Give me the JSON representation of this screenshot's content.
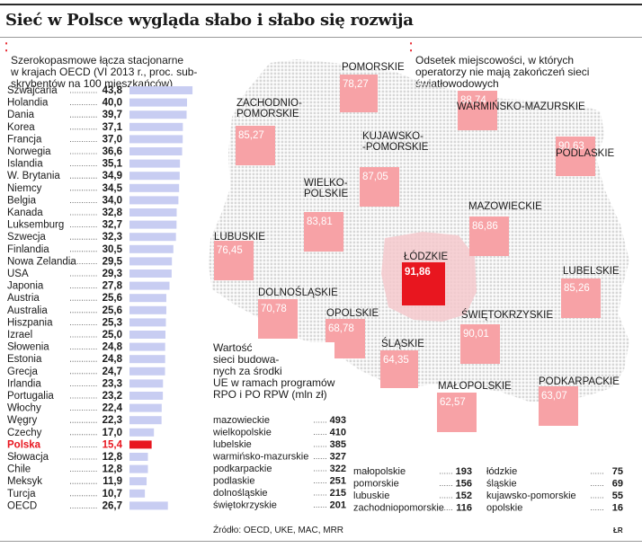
{
  "title": "Sieć w Polsce wygląda słabo i słabo się rozwija",
  "source": "Źródło: OECD, UKE, MAC, MRR",
  "author": "ŁR",
  "colors": {
    "bar": "#c8cdf2",
    "bar_highlight": "#e8161f",
    "highlight_text": "#e8161f",
    "region_box": "#f7a2a6",
    "region_box_max": "#e8161f",
    "map_dots": "#d7d7d7",
    "map_pink": "#f5c9cc"
  },
  "chart_data": [
    {
      "type": "bar",
      "title": "Szerokopasmowe łącza stacjonarne\nw krajach OECD (VI 2013 r., proc. sub-\nskrybentów na 100 mieszkańców)",
      "categories": [
        "Szwajcaria",
        "Holandia",
        "Dania",
        "Korea",
        "Francja",
        "Norwegia",
        "Islandia",
        "W. Brytania",
        "Niemcy",
        "Belgia",
        "Kanada",
        "Luksemburg",
        "Szwecja",
        "Finlandia",
        "Nowa Zelandia",
        "USA",
        "Japonia",
        "Austria",
        "Australia",
        "Hiszpania",
        "Izrael",
        "Słowenia",
        "Estonia",
        "Grecja",
        "Irlandia",
        "Portugalia",
        "Włochy",
        "Węgry",
        "Czechy",
        "Polska",
        "Słowacja",
        "Chile",
        "Meksyk",
        "Turcja",
        "OECD"
      ],
      "values": [
        43.8,
        40.0,
        39.7,
        37.1,
        37.0,
        36.6,
        35.1,
        34.9,
        34.5,
        34.0,
        32.8,
        32.7,
        32.3,
        30.5,
        29.5,
        29.3,
        27.8,
        25.6,
        25.6,
        25.3,
        25.0,
        24.8,
        24.8,
        24.7,
        23.3,
        23.2,
        22.4,
        22.3,
        17.0,
        15.4,
        12.8,
        12.8,
        11.9,
        10.7,
        26.7
      ],
      "value_labels": [
        "43,8",
        "40,0",
        "39,7",
        "37,1",
        "37,0",
        "36,6",
        "35,1",
        "34,9",
        "34,5",
        "34,0",
        "32,8",
        "32,7",
        "32,3",
        "30,5",
        "29,5",
        "29,3",
        "27,8",
        "25,6",
        "25,6",
        "25,3",
        "25,0",
        "24,8",
        "24,8",
        "24,7",
        "23,3",
        "23,2",
        "22,4",
        "22,3",
        "17,0",
        "15,4",
        "12,8",
        "12,8",
        "11,9",
        "10,7",
        "26,7"
      ],
      "highlight": "Polska",
      "xlim": [
        0,
        45
      ]
    },
    {
      "type": "map",
      "title": "Odsetek miejscowości, w których\noperatorzy nie mają zakończeń sieci\nświatłowodowych",
      "regions": [
        {
          "name": "POMORSKIE",
          "value": 78.27,
          "label": "78,27"
        },
        {
          "name": "ZACHODNIO-\nPOMORSKIE",
          "value": 85.27,
          "label": "85,27"
        },
        {
          "name": "WARMIŃSKO-MAZURSKIE",
          "value": 88.74,
          "label": "88,74"
        },
        {
          "name": "KUJAWSKO-\n-POMORSKIE",
          "value": 87.05,
          "label": "87,05"
        },
        {
          "name": "PODLASKIE",
          "value": 90.63,
          "label": "90,63"
        },
        {
          "name": "WIELKO-\nPOLSKIE",
          "value": 83.81,
          "label": "83,81"
        },
        {
          "name": "MAZOWIECKIE",
          "value": 86.86,
          "label": "86,86"
        },
        {
          "name": "LUBUSKIE",
          "value": 76.45,
          "label": "76,45"
        },
        {
          "name": "ŁÓDZKIE",
          "value": 91.86,
          "label": "91,86"
        },
        {
          "name": "LUBELSKIE",
          "value": 85.26,
          "label": "85,26"
        },
        {
          "name": "DOLNOŚLĄSKIE",
          "value": 70.78,
          "label": "70,78"
        },
        {
          "name": "OPOLSKIE",
          "value": 68.78,
          "label": "68,78"
        },
        {
          "name": "ŚWIĘTOKRZYSKIE",
          "value": 90.01,
          "label": "90,01"
        },
        {
          "name": "ŚLĄSKIE",
          "value": 64.35,
          "label": "64,35"
        },
        {
          "name": "MAŁOPOLSKIE",
          "value": 62.57,
          "label": "62,57"
        },
        {
          "name": "PODKARPACKIE",
          "value": 63.07,
          "label": "63,07"
        }
      ]
    },
    {
      "type": "table",
      "title": "Wartość\nsieci budowa-\nnych za środki\nUE w ramach programów\nRPO i PO RPW (mln zł)",
      "columns": [
        [
          {
            "name": "mazowieckie",
            "value": 493
          },
          {
            "name": "wielkopolskie",
            "value": 410
          },
          {
            "name": "lubelskie",
            "value": 385
          },
          {
            "name": "warmińsko-mazurskie",
            "value": 327
          },
          {
            "name": "podkarpackie",
            "value": 322
          },
          {
            "name": "podlaskie",
            "value": 251
          },
          {
            "name": "dolnośląskie",
            "value": 215
          },
          {
            "name": "świętokrzyskie",
            "value": 201
          }
        ],
        [
          {
            "name": "małopolskie",
            "value": 193
          },
          {
            "name": "pomorskie",
            "value": 156
          },
          {
            "name": "lubuskie",
            "value": 152
          },
          {
            "name": "zachodniopomorskie",
            "value": 116
          }
        ],
        [
          {
            "name": "łódzkie",
            "value": 75
          },
          {
            "name": "śląskie",
            "value": 69
          },
          {
            "name": "kujawsko-pomorskie",
            "value": 55
          },
          {
            "name": "opolskie",
            "value": 16
          }
        ]
      ]
    }
  ]
}
